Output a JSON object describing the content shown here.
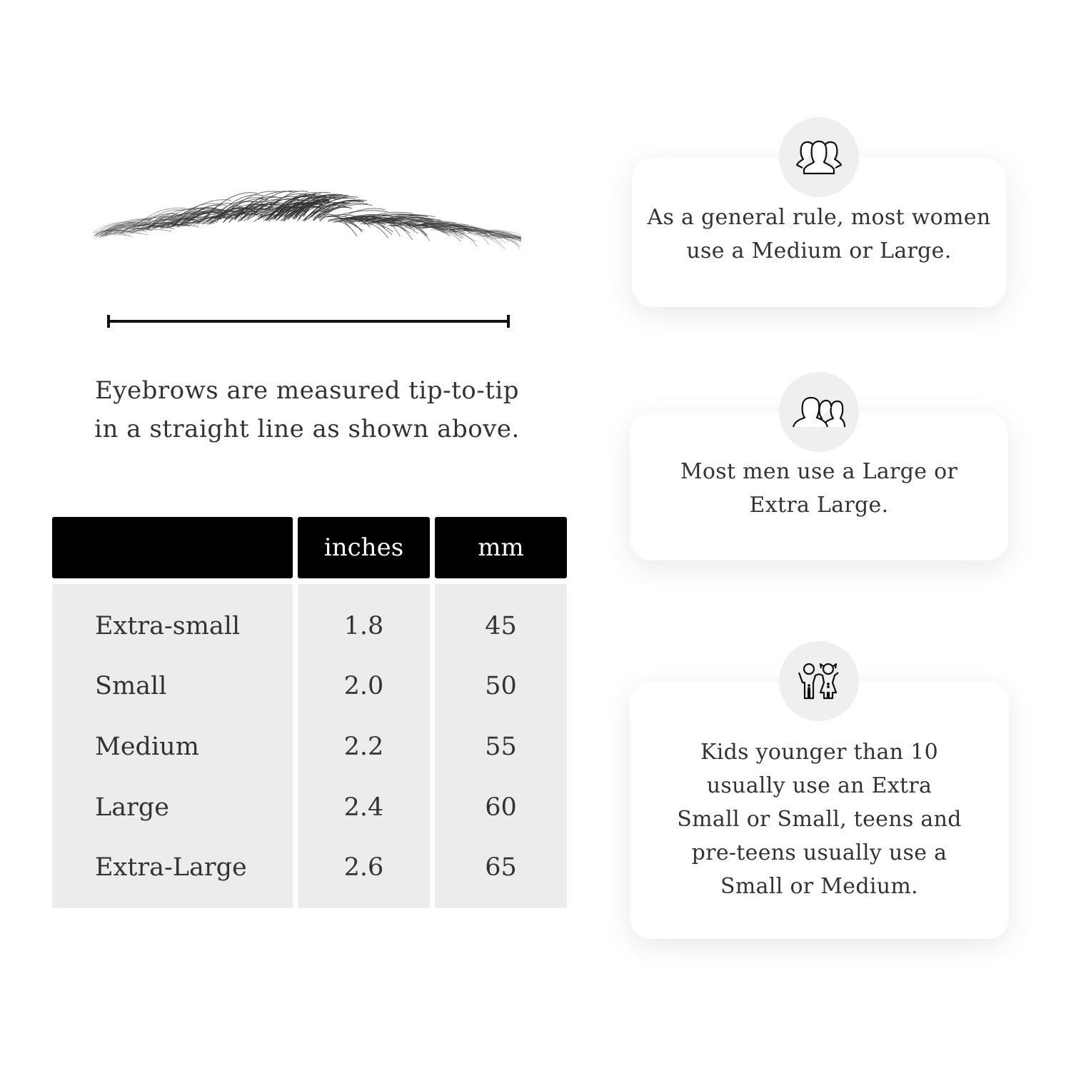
{
  "measurement": {
    "caption_line1": "Eyebrows are measured tip-to-tip",
    "caption_line2": "in a straight line as shown above."
  },
  "table": {
    "headers": [
      "",
      "inches",
      "mm"
    ],
    "rows": [
      {
        "size": "Extra-small",
        "inches": "1.8",
        "mm": "45"
      },
      {
        "size": "Small",
        "inches": "2.0",
        "mm": "50"
      },
      {
        "size": "Medium",
        "inches": "2.2",
        "mm": "55"
      },
      {
        "size": "Large",
        "inches": "2.4",
        "mm": "60"
      },
      {
        "size": "Extra-Large",
        "inches": "2.6",
        "mm": "65"
      }
    ]
  },
  "cards": [
    {
      "icon": "women-group-icon",
      "line1": "As a general rule, most women",
      "line2": "use a Medium or Large."
    },
    {
      "icon": "men-group-icon",
      "line1": "Most men use a Large or",
      "line2": "Extra Large."
    },
    {
      "icon": "kids-icon",
      "line1": "Kids younger than 10",
      "line2": "usually use an Extra",
      "line3": "Small or Small, teens and",
      "line4": "pre-teens usually use a",
      "line5": "Small or Medium."
    }
  ]
}
